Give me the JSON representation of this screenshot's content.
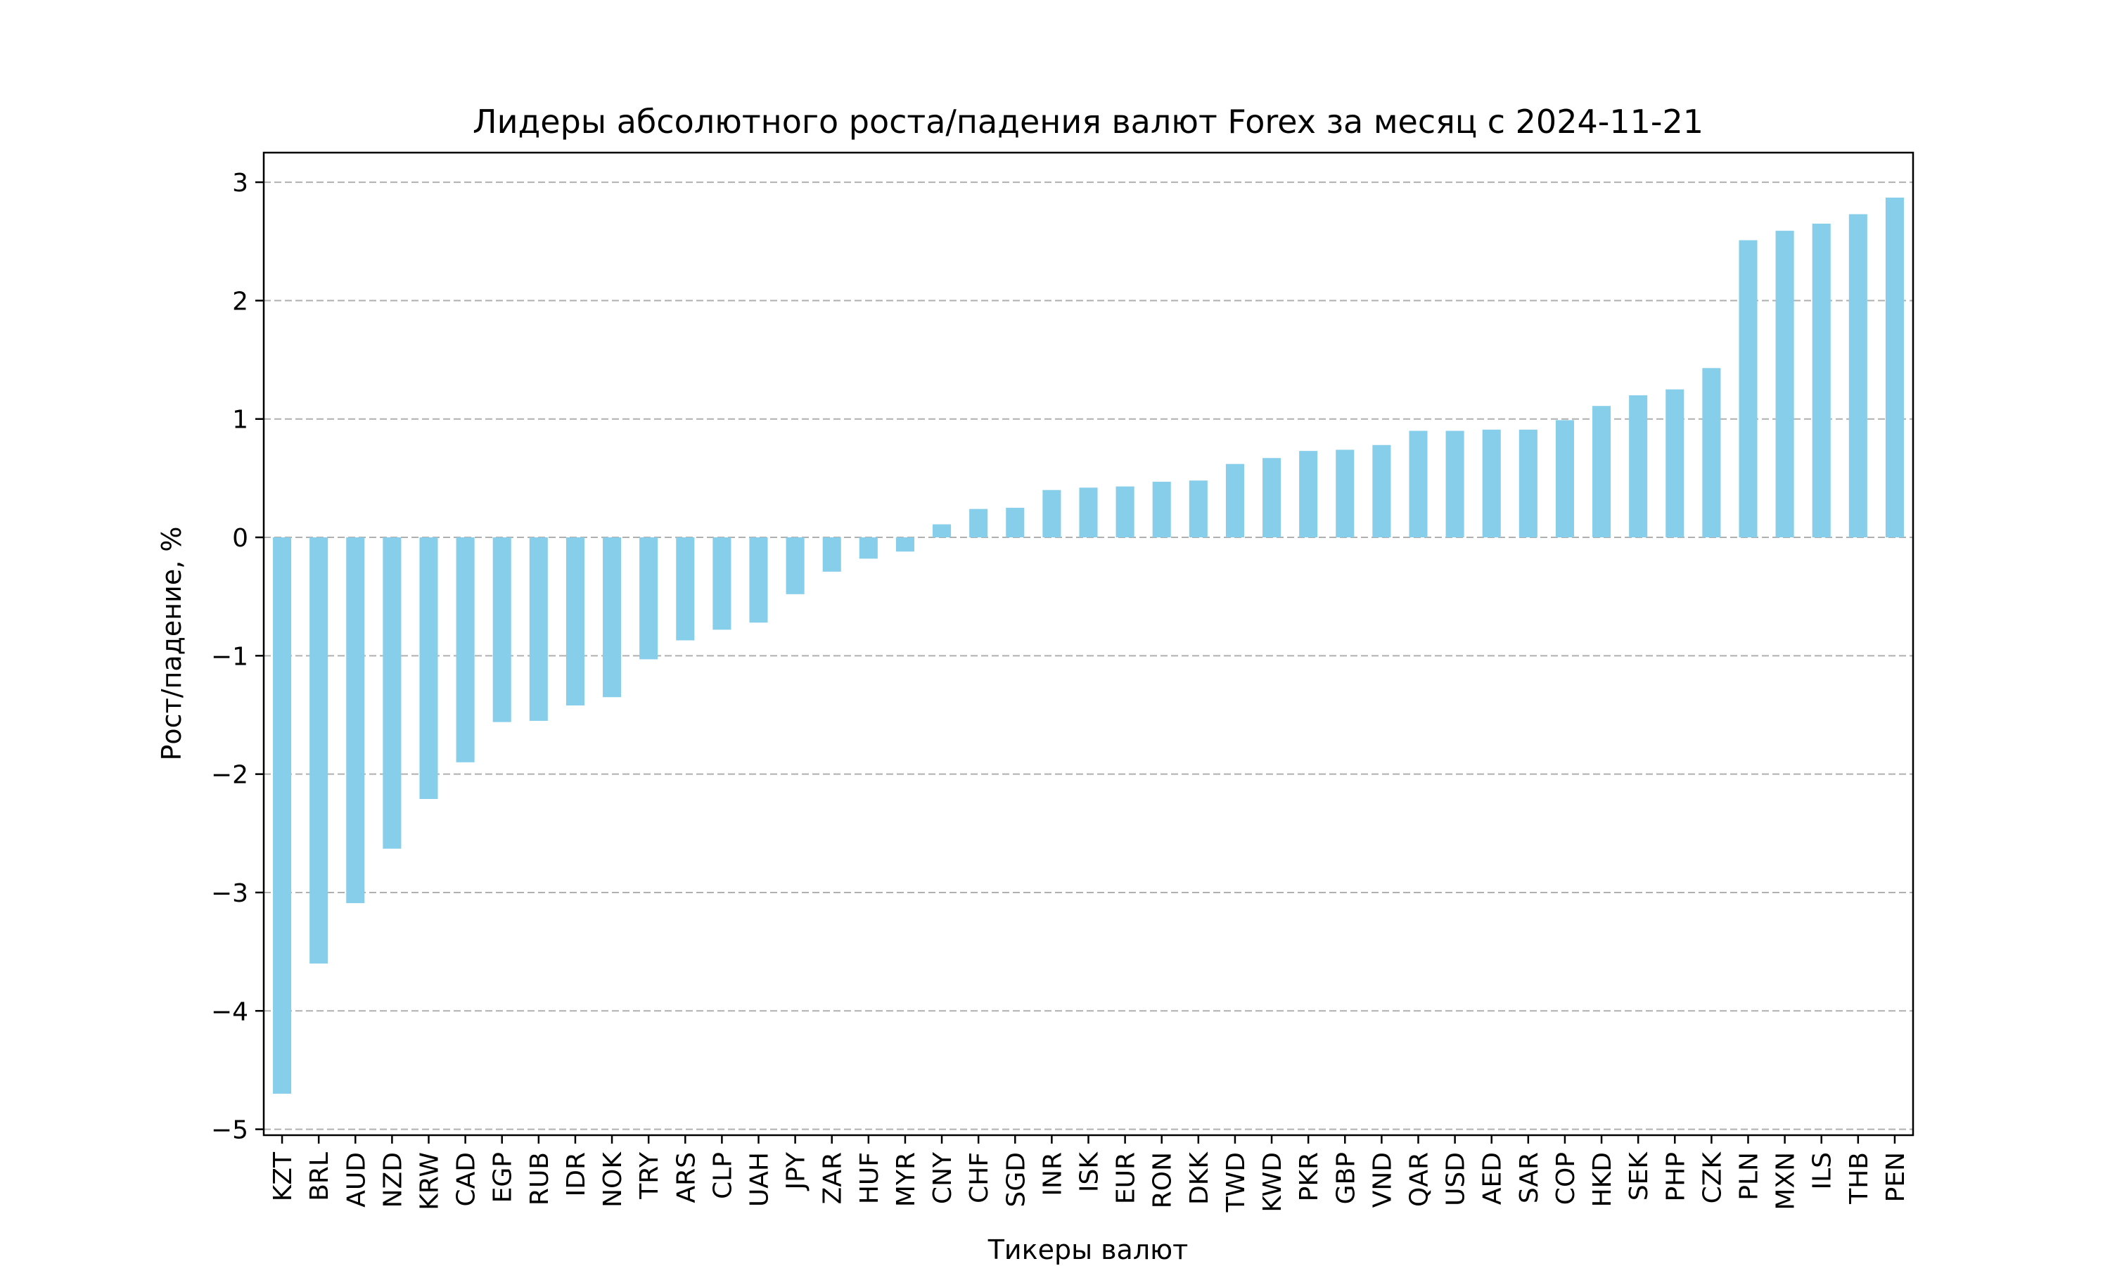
{
  "chart_data": {
    "type": "bar",
    "title": "Лидеры абсолютного роста/падения валют Forex за месяц с 2024-11-21",
    "xlabel": "Тикеры валют",
    "ylabel": "Рост/падение, %",
    "ylim": [
      -5.05,
      3.25
    ],
    "yticks": [
      3,
      2,
      1,
      0,
      -1,
      -2,
      -3,
      -4,
      -5
    ],
    "ytick_labels": [
      "3",
      "2",
      "1",
      "0",
      "−1",
      "−2",
      "−3",
      "−4",
      "−5"
    ],
    "grid": "horizontal dashed",
    "bar_color": "#87CEEB",
    "categories": [
      "KZT",
      "BRL",
      "AUD",
      "NZD",
      "KRW",
      "CAD",
      "EGP",
      "RUB",
      "IDR",
      "NOK",
      "TRY",
      "ARS",
      "CLP",
      "UAH",
      "JPY",
      "ZAR",
      "HUF",
      "MYR",
      "CNY",
      "CHF",
      "SGD",
      "INR",
      "ISK",
      "EUR",
      "RON",
      "DKK",
      "TWD",
      "KWD",
      "PKR",
      "GBP",
      "VND",
      "QAR",
      "USD",
      "AED",
      "SAR",
      "COP",
      "HKD",
      "SEK",
      "PHP",
      "CZK",
      "PLN",
      "MXN",
      "ILS",
      "THB",
      "PEN"
    ],
    "values": [
      -4.7,
      -3.6,
      -3.09,
      -2.63,
      -2.21,
      -1.9,
      -1.56,
      -1.55,
      -1.42,
      -1.35,
      -1.03,
      -0.87,
      -0.78,
      -0.72,
      -0.48,
      -0.29,
      -0.18,
      -0.12,
      0.11,
      0.24,
      0.25,
      0.4,
      0.42,
      0.43,
      0.47,
      0.48,
      0.62,
      0.67,
      0.73,
      0.74,
      0.78,
      0.9,
      0.9,
      0.91,
      0.91,
      0.99,
      1.11,
      1.2,
      1.25,
      1.43,
      2.51,
      2.59,
      2.65,
      2.73,
      2.87
    ]
  }
}
